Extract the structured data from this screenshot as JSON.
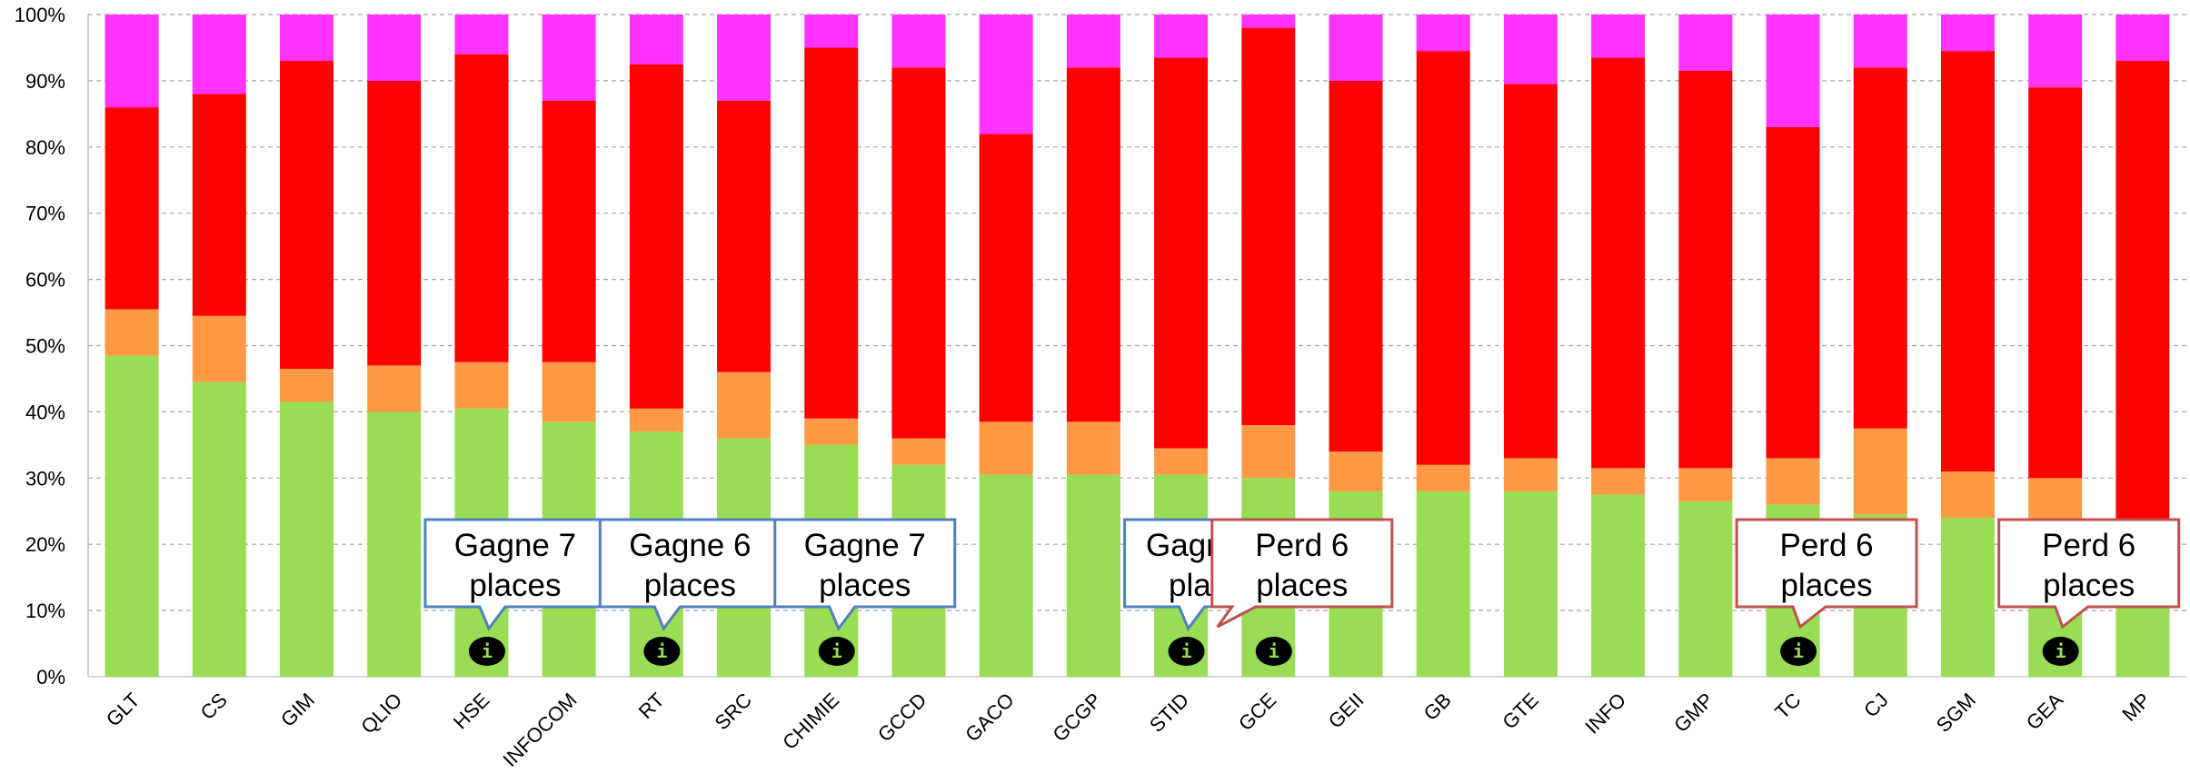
{
  "chart_data": {
    "type": "bar",
    "stacked": "percent",
    "categories": [
      "GLT",
      "CS",
      "GIM",
      "QLIO",
      "HSE",
      "INFOCOM",
      "RT",
      "SRC",
      "CHIMIE",
      "GCCD",
      "GACO",
      "GCGP",
      "STID",
      "GCE",
      "GEII",
      "GB",
      "GTE",
      "INFO",
      "GMP",
      "TC",
      "CJ",
      "SGM",
      "GEA",
      "MP"
    ],
    "series": [
      {
        "color": "#99dd55",
        "values": [
          48.5,
          44.5,
          41.5,
          40,
          40.5,
          38.5,
          37,
          36,
          35,
          32,
          30.5,
          30.5,
          30.5,
          30,
          28,
          28,
          28,
          27.5,
          26.5,
          26,
          24.5,
          24,
          20,
          16
        ]
      },
      {
        "color": "#ff9944",
        "values": [
          7,
          10,
          5,
          7,
          7,
          9,
          3.5,
          10,
          4,
          4,
          8,
          8,
          4,
          8,
          6,
          4,
          5,
          4,
          5,
          7,
          13,
          7,
          10,
          4
        ]
      },
      {
        "color": "#ff0000",
        "values": [
          30.5,
          33.5,
          46.5,
          43,
          46.5,
          39.5,
          52,
          41,
          56,
          56,
          43.5,
          53.5,
          59,
          60,
          56,
          62.5,
          56.5,
          62,
          60,
          50,
          54.5,
          63.5,
          59,
          73
        ]
      },
      {
        "color": "#ff33ff",
        "values": [
          14,
          12,
          7,
          10,
          6,
          13,
          7.5,
          13,
          5,
          8,
          18,
          8,
          6.5,
          2,
          10,
          5.5,
          10.5,
          6.5,
          8.5,
          17,
          8,
          5.5,
          11,
          7
        ]
      }
    ],
    "ylim": [
      0,
      100
    ],
    "yticks": [
      "0%",
      "10%",
      "20%",
      "30%",
      "40%",
      "50%",
      "60%",
      "70%",
      "80%",
      "90%",
      "100%"
    ],
    "grid": true,
    "annotations": [
      {
        "category": "HSE",
        "text_line1": "Gagne 7",
        "text_line2": "places",
        "kind": "gain"
      },
      {
        "category": "RT",
        "text_line1": "Gagne 6",
        "text_line2": "places",
        "kind": "gain"
      },
      {
        "category": "CHIMIE",
        "text_line1": "Gagne 7",
        "text_line2": "places",
        "kind": "gain"
      },
      {
        "category": "STID",
        "text_line1": "Gagne 11",
        "text_line2": "places",
        "kind": "gain"
      },
      {
        "category": "GCE",
        "text_line1": "Perd 6",
        "text_line2": "places",
        "kind": "loss"
      },
      {
        "category": "TC",
        "text_line1": "Perd 6",
        "text_line2": "places",
        "kind": "loss"
      },
      {
        "category": "GEA",
        "text_line1": "Perd 6",
        "text_line2": "places",
        "kind": "loss"
      }
    ],
    "info_markers": [
      "HSE",
      "RT",
      "CHIMIE",
      "STID",
      "GCE",
      "TC",
      "GEA"
    ],
    "info_glyph": "i",
    "colors": {
      "gain_border": "#4f81bd",
      "loss_border": "#c0504d",
      "marker_bg": "#000000",
      "marker_fg": "#99dd55"
    }
  }
}
